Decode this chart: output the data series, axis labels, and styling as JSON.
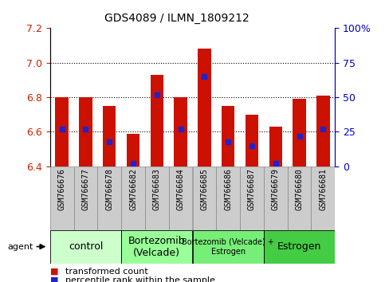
{
  "title": "GDS4089 / ILMN_1809212",
  "samples": [
    "GSM766676",
    "GSM766677",
    "GSM766678",
    "GSM766682",
    "GSM766683",
    "GSM766684",
    "GSM766685",
    "GSM766686",
    "GSM766687",
    "GSM766679",
    "GSM766680",
    "GSM766681"
  ],
  "transformed_count": [
    6.8,
    6.8,
    6.75,
    6.59,
    6.93,
    6.8,
    7.08,
    6.75,
    6.7,
    6.63,
    6.79,
    6.81
  ],
  "percentile_rank": [
    27,
    27,
    18,
    2,
    52,
    27,
    65,
    18,
    15,
    2,
    22,
    27
  ],
  "ylim_left": [
    6.4,
    7.2
  ],
  "ylim_right": [
    0,
    100
  ],
  "yticks_left": [
    6.4,
    6.6,
    6.8,
    7.0,
    7.2
  ],
  "yticks_right": [
    0,
    25,
    50,
    75,
    100
  ],
  "ytick_labels_right": [
    "0",
    "25",
    "50",
    "75",
    "100%"
  ],
  "groups": [
    {
      "label": "control",
      "start": 0,
      "end": 3,
      "color": "#ccffcc",
      "fontsize": 9
    },
    {
      "label": "Bortezomib\n(Velcade)",
      "start": 3,
      "end": 6,
      "color": "#99ff99",
      "fontsize": 9
    },
    {
      "label": "Bortezomib (Velcade) +\nEstrogen",
      "start": 6,
      "end": 9,
      "color": "#77ee77",
      "fontsize": 7
    },
    {
      "label": "Estrogen",
      "start": 9,
      "end": 12,
      "color": "#44cc44",
      "fontsize": 9
    }
  ],
  "bar_color": "#cc1100",
  "dot_color": "#2222cc",
  "bar_width": 0.55,
  "baseline": 6.4,
  "agent_label": "agent",
  "tick_color_left": "#cc2200",
  "tick_color_right": "#0000cc",
  "sample_box_color": "#cccccc",
  "sample_box_edge": "#888888"
}
